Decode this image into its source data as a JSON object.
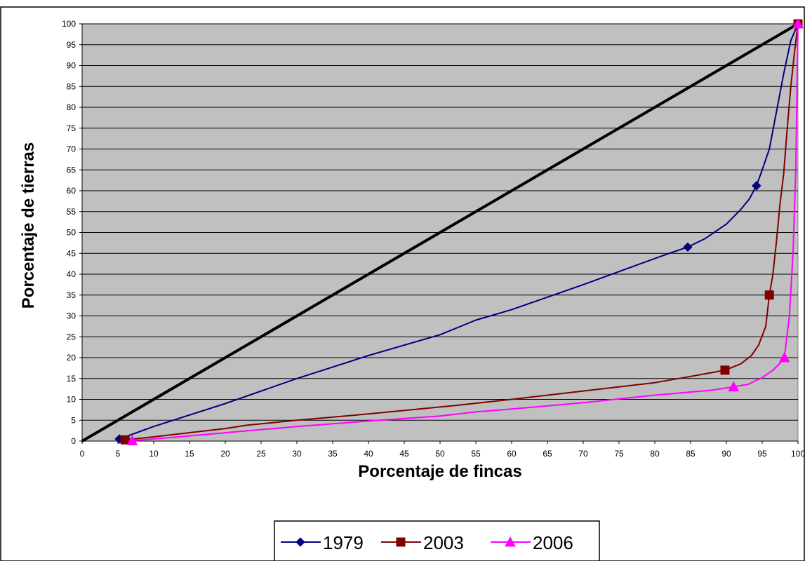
{
  "chart_data": {
    "type": "line",
    "title": "",
    "xlabel": "Porcentaje de fincas",
    "ylabel": "Porcentaje de tierras",
    "xlim": [
      0,
      100
    ],
    "ylim": [
      0,
      100
    ],
    "x_ticks": [
      0,
      5,
      10,
      15,
      20,
      25,
      30,
      35,
      40,
      45,
      50,
      55,
      60,
      65,
      70,
      75,
      80,
      85,
      90,
      95,
      100
    ],
    "y_ticks": [
      0,
      5,
      10,
      15,
      20,
      25,
      30,
      35,
      40,
      45,
      50,
      55,
      60,
      65,
      70,
      75,
      80,
      85,
      90,
      95,
      100
    ],
    "grid": "horizontal",
    "legend_position": "bottom",
    "equality_line": [
      [
        0,
        0
      ],
      [
        100,
        100
      ]
    ],
    "series": [
      {
        "name": "1979",
        "color": "#000080",
        "marker": "diamond",
        "points": [
          [
            5.2,
            0.5
          ],
          [
            10,
            3.5
          ],
          [
            20,
            9
          ],
          [
            30,
            15
          ],
          [
            40,
            20.5
          ],
          [
            50,
            25.5
          ],
          [
            55,
            29
          ],
          [
            60,
            31.5
          ],
          [
            70,
            37.5
          ],
          [
            78,
            42.5
          ],
          [
            82,
            45
          ],
          [
            84.6,
            46.5
          ],
          [
            87,
            48.5
          ],
          [
            90,
            52
          ],
          [
            92,
            55.5
          ],
          [
            93.2,
            58
          ],
          [
            94.2,
            61.2
          ],
          [
            95,
            65
          ],
          [
            96,
            70
          ],
          [
            97,
            79
          ],
          [
            98,
            88
          ],
          [
            99,
            96
          ],
          [
            100,
            100
          ]
        ],
        "markers": [
          [
            5.2,
            0.5
          ],
          [
            84.6,
            46.5
          ],
          [
            94.2,
            61.2
          ],
          [
            100,
            100
          ]
        ]
      },
      {
        "name": "2003",
        "color": "#800000",
        "marker": "square",
        "points": [
          [
            6,
            0.3
          ],
          [
            10,
            1
          ],
          [
            20,
            3
          ],
          [
            23,
            3.8
          ],
          [
            30,
            5
          ],
          [
            40,
            6.5
          ],
          [
            52,
            8.5
          ],
          [
            60,
            10
          ],
          [
            70,
            12
          ],
          [
            80,
            14
          ],
          [
            85,
            15.5
          ],
          [
            89.8,
            17
          ],
          [
            92,
            18.5
          ],
          [
            93.5,
            20.5
          ],
          [
            94.5,
            23
          ],
          [
            95.5,
            27.5
          ],
          [
            96,
            35
          ],
          [
            96.5,
            40
          ],
          [
            97,
            48
          ],
          [
            97.5,
            57
          ],
          [
            98,
            64
          ],
          [
            98.5,
            75
          ],
          [
            99,
            85
          ],
          [
            99.5,
            93
          ],
          [
            100,
            100
          ]
        ],
        "markers": [
          [
            6,
            0.3
          ],
          [
            89.8,
            17
          ],
          [
            96,
            35
          ],
          [
            100,
            100
          ]
        ]
      },
      {
        "name": "2006",
        "color": "#FF00FF",
        "marker": "triangle",
        "points": [
          [
            7,
            0.1
          ],
          [
            10,
            0.5
          ],
          [
            20,
            2
          ],
          [
            30,
            3.5
          ],
          [
            40,
            4.8
          ],
          [
            50,
            6
          ],
          [
            55,
            7
          ],
          [
            60,
            7.7
          ],
          [
            70,
            9.2
          ],
          [
            80,
            11
          ],
          [
            88,
            12.2
          ],
          [
            91,
            13
          ],
          [
            93,
            13.6
          ],
          [
            95,
            15.2
          ],
          [
            96.5,
            17
          ],
          [
            97.4,
            18.5
          ],
          [
            98.1,
            20
          ],
          [
            98.8,
            30
          ],
          [
            99.3,
            45
          ],
          [
            99.7,
            65
          ],
          [
            100,
            100
          ]
        ],
        "markers": [
          [
            7,
            0.1
          ],
          [
            91,
            13
          ],
          [
            98.1,
            20
          ],
          [
            100,
            100
          ]
        ]
      }
    ]
  }
}
